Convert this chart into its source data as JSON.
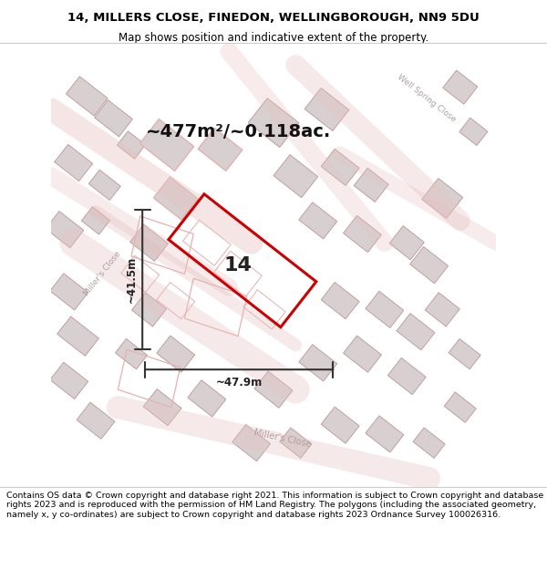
{
  "title_line1": "14, MILLERS CLOSE, FINEDON, WELLINGBOROUGH, NN9 5DU",
  "title_line2": "Map shows position and indicative extent of the property.",
  "footer_text": "Contains OS data © Crown copyright and database right 2021. This information is subject to Crown copyright and database rights 2023 and is reproduced with the permission of HM Land Registry. The polygons (including the associated geometry, namely x, y co-ordinates) are subject to Crown copyright and database rights 2023 Ordnance Survey 100026316.",
  "area_label": "~477m²/~0.118ac.",
  "width_label": "~47.9m",
  "height_label": "~41.5m",
  "number_label": "14",
  "bg_color": "#f5f0f0",
  "map_bg": "#f5f0f0",
  "plot_color": "#cc0000",
  "plot_fill": "none",
  "road_color": "#e8d0d0",
  "building_color": "#d8d0d0",
  "building_edge": "#c0b0b0",
  "street_label_color": "#b0a0a0",
  "title_bg": "#ffffff",
  "footer_bg": "#ffffff",
  "map_border_color": "#cccccc"
}
